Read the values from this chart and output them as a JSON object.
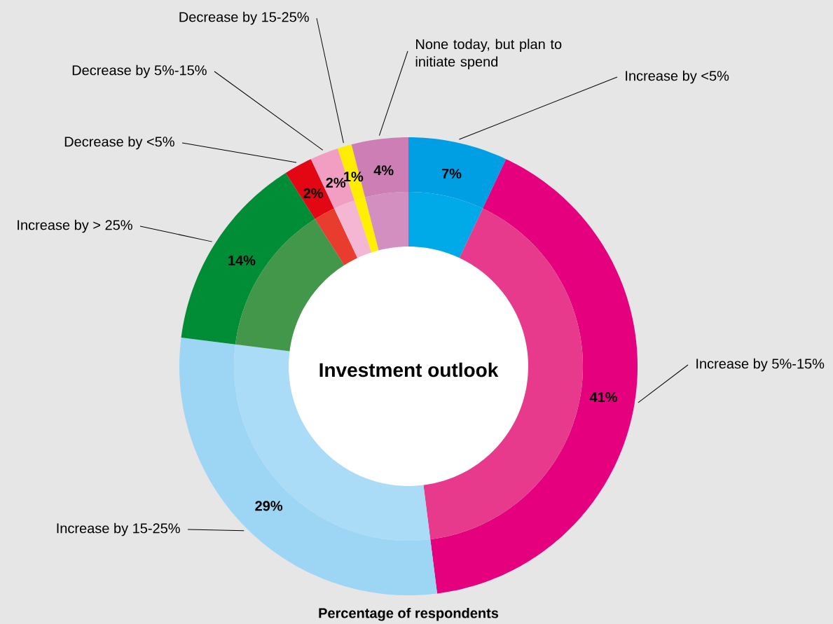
{
  "chart_data": {
    "type": "donut",
    "title": "Investment outlook",
    "categories": [
      "Increase by <5%",
      "Increase by 5%-15%",
      "Increase by 15-25%",
      "Increase by > 25%",
      "Decrease by <5%",
      "Decrease by 5%-15%",
      "Decrease by 15-25%",
      "None today, but plan to initiate spend"
    ],
    "series": [
      {
        "values": [
          7,
          41,
          29,
          14,
          2,
          2,
          1,
          4
        ],
        "value_labels": [
          "7%",
          "41%",
          "29%",
          "14%",
          "2%",
          "2%",
          "1%",
          "4%"
        ],
        "colors": [
          "#009fe3",
          "#e5007e",
          "#9dd5f5",
          "#008d36",
          "#e30613",
          "#f19ec2",
          "#ffed00",
          "#cd7fb5"
        ]
      },
      {
        "values": [
          7,
          41,
          29,
          14,
          2,
          2,
          1,
          4
        ],
        "colors": [
          "#00aae8",
          "#e83a8c",
          "#aadcf7",
          "#43974b",
          "#e73c2e",
          "#f4b6d2",
          "#fff000",
          "#d38fbf"
        ]
      }
    ],
    "annotations": [
      "Percentage of respondents"
    ]
  }
}
